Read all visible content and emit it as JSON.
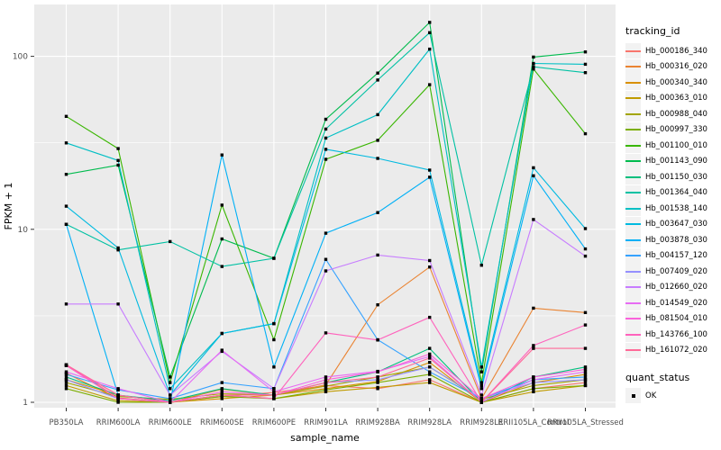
{
  "figure": {
    "panel_background": "#EBEBEB",
    "grid_color": "#FFFFFF",
    "tick_label_color": "#4D4D4D",
    "axis_title_color": "#000000",
    "point_color": "#000000",
    "legend_key_background": "#F2F2F2"
  },
  "axes": {
    "x_title": "sample_name",
    "y_title": "FPKM + 1",
    "y_tick_labels": [
      "100",
      "10",
      "1"
    ],
    "y_tick_values": [
      100,
      10,
      1
    ]
  },
  "legend": {
    "tracking_title": "tracking_id",
    "quant_title": "quant_status",
    "quant_items": [
      {
        "label": "OK",
        "marker": "black-square"
      }
    ]
  },
  "chart_data": {
    "type": "line",
    "title": "",
    "xlabel": "sample_name",
    "ylabel": "FPKM + 1",
    "y_scale": "log10",
    "ylim": [
      0.85,
      200
    ],
    "grid": true,
    "legend_position": "right",
    "point_marker": "black-square",
    "quant_status": "OK",
    "categories": [
      "PB350LA",
      "RRIM600LA",
      "RRIM600LE",
      "RRIM600SE",
      "RRIM600PE",
      "RRIM901LA",
      "RRIM928BA",
      "RRIM928LA",
      "RRIM928LE",
      "RRII105LA_Control",
      "RRII105LA_Stressed"
    ],
    "series": [
      {
        "name": "Hb_000186_340",
        "color": "#F8766D",
        "values": [
          1.65,
          1.06,
          1.0,
          1.08,
          1.14,
          1.25,
          1.2,
          1.35,
          1.0,
          1.2,
          1.3
        ]
      },
      {
        "name": "Hb_000316_020",
        "color": "#EA8331",
        "values": [
          1.47,
          1.05,
          1.0,
          1.19,
          1.1,
          1.26,
          3.66,
          6.05,
          1.05,
          3.5,
          3.3
        ]
      },
      {
        "name": "Hb_000340_340",
        "color": "#D89000",
        "values": [
          1.35,
          1.1,
          1.0,
          1.05,
          1.1,
          1.2,
          1.32,
          1.7,
          1.0,
          1.3,
          1.45
        ]
      },
      {
        "name": "Hb_000363_010",
        "color": "#C09B00",
        "values": [
          1.25,
          1.02,
          1.0,
          1.1,
          1.05,
          1.15,
          1.22,
          1.3,
          1.0,
          1.15,
          1.25
        ]
      },
      {
        "name": "Hb_000988_040",
        "color": "#A3A500",
        "values": [
          1.3,
          1.08,
          1.04,
          1.12,
          1.1,
          1.24,
          1.4,
          1.6,
          1.04,
          1.25,
          1.35
        ]
      },
      {
        "name": "Hb_000997_330",
        "color": "#7CAE00",
        "values": [
          1.2,
          1.0,
          1.0,
          1.08,
          1.05,
          1.18,
          1.3,
          1.45,
          1.0,
          1.2,
          1.25
        ]
      },
      {
        "name": "Hb_001100_010",
        "color": "#39B600",
        "values": [
          45,
          29.3,
          1.3,
          13.8,
          2.3,
          25.4,
          32.7,
          68.6,
          1.3,
          84.5,
          35.7
        ]
      },
      {
        "name": "Hb_001143_090",
        "color": "#00BB4E",
        "values": [
          20.8,
          23.5,
          1.4,
          8.8,
          6.8,
          43.3,
          80,
          157,
          1.5,
          99,
          106
        ]
      },
      {
        "name": "Hb_001150_030",
        "color": "#00BF7D",
        "values": [
          1.4,
          1.1,
          1.02,
          1.2,
          1.1,
          1.3,
          1.5,
          2.05,
          1.0,
          1.4,
          1.6
        ]
      },
      {
        "name": "Hb_001364_040",
        "color": "#00C1A3",
        "values": [
          10.7,
          7.6,
          8.5,
          6.1,
          6.8,
          38,
          73,
          137,
          6.2,
          87,
          80.5
        ]
      },
      {
        "name": "Hb_001538_140",
        "color": "#00BFC4",
        "values": [
          31.6,
          25,
          1.2,
          2.5,
          2.85,
          33.7,
          46,
          110,
          1.6,
          91,
          90
        ]
      },
      {
        "name": "Hb_003647_030",
        "color": "#00BAE0",
        "values": [
          13.6,
          7.8,
          1.1,
          2.5,
          2.85,
          29,
          25.7,
          22,
          1.25,
          22.7,
          10.1
        ]
      },
      {
        "name": "Hb_003878_030",
        "color": "#00B0F6",
        "values": [
          10.7,
          1.1,
          1.0,
          26.9,
          1.6,
          9.5,
          12.5,
          20,
          1.2,
          20.4,
          7.7
        ]
      },
      {
        "name": "Hb_004157_120",
        "color": "#35A2FF",
        "values": [
          1.45,
          1.18,
          1.05,
          1.3,
          1.2,
          6.7,
          2.3,
          1.5,
          1.05,
          1.35,
          1.4
        ]
      },
      {
        "name": "Hb_007409_020",
        "color": "#9590FF",
        "values": [
          1.35,
          1.05,
          1.0,
          1.1,
          1.1,
          1.3,
          1.35,
          1.6,
          1.05,
          1.3,
          1.35
        ]
      },
      {
        "name": "Hb_012660_020",
        "color": "#C77CFF",
        "values": [
          3.7,
          3.7,
          1.1,
          1.97,
          1.2,
          5.75,
          7.1,
          6.6,
          1.1,
          11.4,
          7.0
        ]
      },
      {
        "name": "Hb_014549_020",
        "color": "#E76BF3",
        "values": [
          1.5,
          1.2,
          1.0,
          2.0,
          1.15,
          1.4,
          1.51,
          1.84,
          1.0,
          1.35,
          1.5
        ]
      },
      {
        "name": "Hb_081504_010",
        "color": "#FA62DB",
        "values": [
          1.63,
          1.1,
          1.0,
          1.15,
          1.1,
          1.35,
          1.5,
          1.9,
          1.05,
          1.4,
          1.55
        ]
      },
      {
        "name": "Hb_143766_100",
        "color": "#FF62BC",
        "values": [
          1.63,
          1.05,
          1.0,
          1.1,
          1.05,
          2.52,
          2.29,
          3.1,
          1.0,
          2.13,
          2.8
        ]
      },
      {
        "name": "Hb_161072_020",
        "color": "#FF6A98",
        "values": [
          1.65,
          1.1,
          1.0,
          1.1,
          1.1,
          1.3,
          1.4,
          1.8,
          1.0,
          2.05,
          2.05
        ]
      }
    ]
  }
}
